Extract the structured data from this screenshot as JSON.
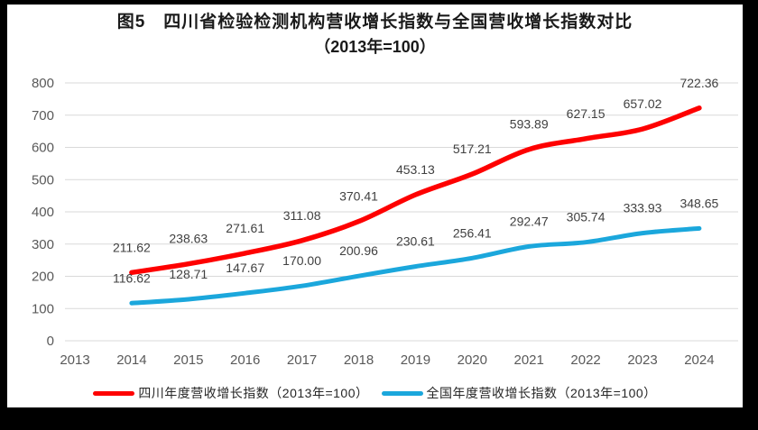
{
  "title": {
    "line1": "图5　四川省检验检测机构营收增长指数与全国营收增长指数对比",
    "line2": "（2013年=100）"
  },
  "colors": {
    "sichuan_line": "#FE0000",
    "national_line": "#1BA7DC",
    "gridline": "#D9D9D9",
    "axis_text": "#595959",
    "data_label_text": "#404040",
    "title_text": "#1A1A1A",
    "frame": "#000000",
    "background": "#FFFFFF"
  },
  "chart_data": {
    "type": "line",
    "title": "图5　四川省检验检测机构营收增长指数与全国营收增长指数对比（2013年=100）",
    "categories": [
      2013,
      2014,
      2015,
      2016,
      2017,
      2018,
      2019,
      2020,
      2021,
      2022,
      2023,
      2024
    ],
    "series": [
      {
        "name": "四川年度营收增长指数（2013年=100）",
        "color": "#FE0000",
        "values": [
          null,
          211.62,
          238.63,
          271.61,
          311.08,
          370.41,
          453.13,
          517.21,
          593.89,
          627.15,
          657.02,
          722.36
        ]
      },
      {
        "name": "全国年度营收增长指数（2013年=100）",
        "color": "#1BA7DC",
        "values": [
          null,
          116.62,
          128.71,
          147.67,
          170.0,
          200.96,
          230.61,
          256.41,
          292.47,
          305.74,
          333.93,
          348.65
        ]
      }
    ],
    "ylim": [
      0,
      800
    ],
    "ytick_step": 100,
    "xlabel": "",
    "ylabel": "",
    "grid": true,
    "data_labels": true,
    "label_format": "0.00",
    "legend_position": "bottom"
  }
}
